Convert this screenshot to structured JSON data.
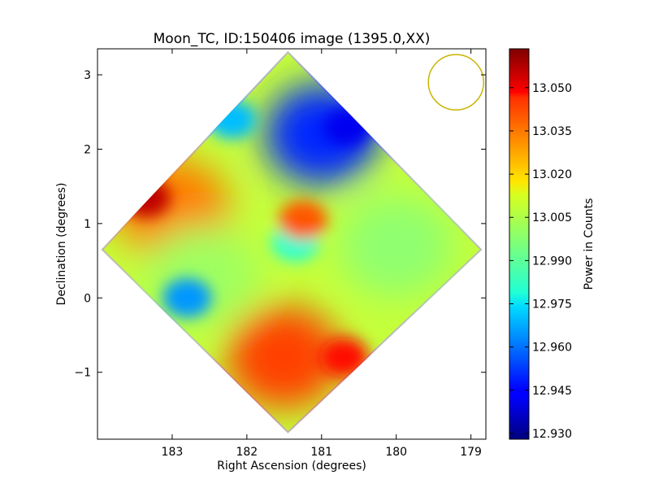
{
  "chart_data": {
    "type": "heatmap",
    "title": "Moon_TC, ID:150406 image (1395.0,XX)",
    "xlabel": "Right Ascension (degrees)",
    "ylabel": "Declination (degrees)",
    "xlim": [
      184.0,
      178.8
    ],
    "ylim": [
      -1.9,
      3.35
    ],
    "x_ticks": [
      183,
      182,
      181,
      180,
      179
    ],
    "x_tick_labels": [
      "183",
      "182",
      "181",
      "180",
      "179"
    ],
    "y_ticks": [
      3,
      2,
      1,
      0,
      -1
    ],
    "y_tick_labels": [
      "3",
      "2",
      "1",
      "0",
      "−1"
    ],
    "colorbar": {
      "label": "Power in Counts",
      "min": 12.928,
      "max": 13.0635,
      "ticks": [
        13.05,
        13.035,
        13.02,
        13.005,
        12.99,
        12.975,
        12.96,
        12.945,
        12.93
      ],
      "tick_labels": [
        "13.050",
        "13.035",
        "13.020",
        "13.005",
        "12.990",
        "12.975",
        "12.960",
        "12.945",
        "12.930"
      ],
      "colormap": "jet"
    },
    "footprint": {
      "shape": "diamond",
      "corners": [
        {
          "ra": 181.45,
          "dec": 3.32
        },
        {
          "ra": 178.85,
          "dec": 0.65
        },
        {
          "ra": 181.45,
          "dec": -1.82
        },
        {
          "ra": 183.95,
          "dec": 0.65
        }
      ]
    },
    "regions": [
      {
        "name": "top quadrant",
        "ra": 181.0,
        "dec": 2.2,
        "value": 12.95
      },
      {
        "name": "top quadrant edge",
        "ra": 182.2,
        "dec": 2.4,
        "value": 12.97
      },
      {
        "name": "top quadrant minimum",
        "ra": 180.65,
        "dec": 2.3,
        "value": 12.943
      },
      {
        "name": "left quadrant",
        "ra": 183.0,
        "dec": 1.2,
        "value": 13.03
      },
      {
        "name": "left quadrant maximum",
        "ra": 183.35,
        "dec": 1.35,
        "value": 13.055
      },
      {
        "name": "left lower band",
        "ra": 182.6,
        "dec": 0.3,
        "value": 13.0
      },
      {
        "name": "left cyan spot",
        "ra": 182.8,
        "dec": 0.0,
        "value": 12.965
      },
      {
        "name": "right quadrant",
        "ra": 180.0,
        "dec": 0.7,
        "value": 12.998
      },
      {
        "name": "bottom quadrant",
        "ra": 181.5,
        "dec": -0.8,
        "value": 13.038
      },
      {
        "name": "bottom right edge",
        "ra": 180.7,
        "dec": -0.8,
        "value": 13.045
      },
      {
        "name": "center",
        "ra": 181.35,
        "dec": 0.75,
        "value": 12.985
      },
      {
        "name": "center orange patch",
        "ra": 181.25,
        "dec": 1.05,
        "value": 13.035
      }
    ],
    "beam": {
      "shape": "circle",
      "ra": 179.2,
      "dec": 2.9,
      "radius_deg": 0.37,
      "color": "#c8b400"
    },
    "grid": false
  },
  "colors": {
    "background": "#ffffff",
    "axes": "#000000",
    "beam": "#c8b400"
  }
}
